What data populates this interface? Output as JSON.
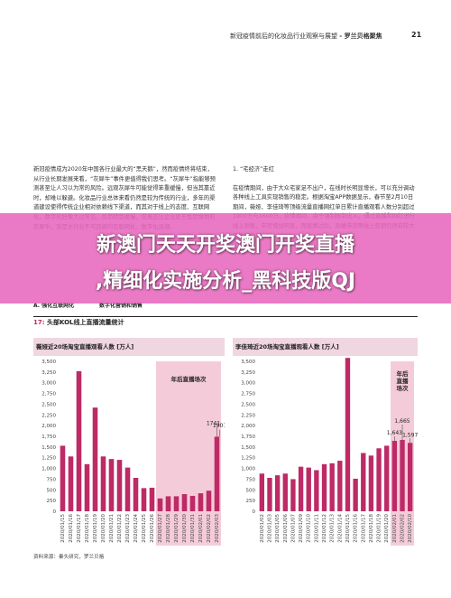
{
  "header": {
    "running_title": "新冠疫情前后的化妆品行业观察与展望",
    "brand": "- 罗兰贝格聚焦",
    "page_number": "21"
  },
  "left_column": {
    "paragraph": "新冠疫情成为2020年中国各行业最大的“黑天鹅”，然而疫情终将结束，从行业长期发展来看，“灰犀牛”事件更值得我们思考。“灰犀牛”指能够预测甚至让人习以为常的风险。远观灰犀牛可能觉得笨重缓慢，但当其靠近时，却难以躲避。化妆品行业总体来看仍然是较为传统的行业，多年的渠道建设使得传统企业相对依赖线下渠道，而其对于线上的态度、互联网化、数字化好像大过常见、反而转型缓慢，但真正让企业处于危险境地的灰犀牛，则是全行业不可回避的互联网化、数字化浪潮。"
  },
  "right_column": {
    "section_title": "1. “宅经济”走红",
    "paragraph": "在疫情期间，由于大众宅家足不出户，在线时长明显增长，可以充分调动各种线上工具实现销售的稳定。根据淘宝APP数据显示，春节至2月10日期间，薇娅、李佳琦等顶级流量直播网红单日累计直播观看人数分别超过1900万与1600万，疫情期间，由于强制限制出入，通过直播和网红进行线上销售，带货增加明显，而疫情过后，直播带货等线上营销仍然有较大的发展空间。"
  },
  "figure": {
    "section_a_label": "A. 强化互联网化",
    "section_a_sub": "数字化营销和销售",
    "number": "17:",
    "title": "头部KOL线上直播流量统计",
    "source": "资料来源：秦头研究，罗兰贝格"
  },
  "banner": {
    "line1": "新澳门天天开奖澳门开奖直播",
    "line2": ",精细化实施分析_黑科技版QJ"
  },
  "colors": {
    "bar": "#bd2a66",
    "shade": "#f4ccd9",
    "banner": "#e868be",
    "chart_title_bg": "#f0d6e0"
  },
  "chart_data": [
    {
      "type": "bar",
      "title": "薇娅近20场淘宝直播观看人数 [万人]",
      "ylim": [
        0,
        3500
      ],
      "yticks": [
        0,
        250,
        500,
        750,
        1000,
        1250,
        1500,
        1750,
        2000,
        2250,
        2500,
        2750,
        3000,
        3250,
        3500
      ],
      "categories": [
        "2020/01/15",
        "2020/01/16",
        "2020/01/17",
        "2020/01/18",
        "2020/01/19",
        "2020/01/20",
        "2020/01/21",
        "2020/01/22",
        "2020/01/23",
        "2020/01/24",
        "2020/01/25",
        "2020/01/26",
        "2020/01/27",
        "2020/01/28",
        "2020/01/29",
        "2020/01/30",
        "2020/01/31",
        "2020/02/01",
        "2020/02/02",
        "2020/02/03"
      ],
      "values": [
        1530,
        1280,
        3270,
        1100,
        2420,
        1280,
        1220,
        1200,
        1020,
        780,
        540,
        550,
        300,
        350,
        350,
        400,
        360,
        420,
        480,
        1741
      ],
      "extra_last": 1901,
      "data_labels": {
        "19": "1741",
        "extra": "1901"
      },
      "shaded_from_index": 12,
      "shaded_label": "年后直播场次",
      "grid": false
    },
    {
      "type": "bar",
      "title": "李佳琦近20场淘宝直播观看人数 [万人]",
      "ylim": [
        0,
        3500
      ],
      "yticks": [
        0,
        250,
        500,
        750,
        1000,
        1250,
        1500,
        1750,
        2000,
        2250,
        2500,
        2750,
        3000,
        3250,
        3500
      ],
      "categories": [
        "2020/01/02",
        "2020/01/03",
        "2020/01/05",
        "2020/01/06",
        "2020/01/07",
        "2020/01/09",
        "2020/01/10",
        "2020/01/11",
        "2020/01/12",
        "2020/01/13",
        "2020/01/14",
        "2020/01/15",
        "2020/01/16",
        "2020/01/17",
        "2020/01/18",
        "2020/01/19",
        "2020/01/20",
        "2020/02/01",
        "2020/02/02",
        "2020/02/10"
      ],
      "values": [
        880,
        780,
        840,
        880,
        750,
        1040,
        1020,
        960,
        1100,
        1120,
        1180,
        3580,
        760,
        1360,
        1300,
        1470,
        1530,
        1643,
        1665,
        1597
      ],
      "data_labels": {
        "17": "1,643",
        "18": "1,665",
        "19": "1,597"
      },
      "shaded_from_index": 17,
      "shaded_label": "年后直播场次",
      "grid": false
    }
  ]
}
